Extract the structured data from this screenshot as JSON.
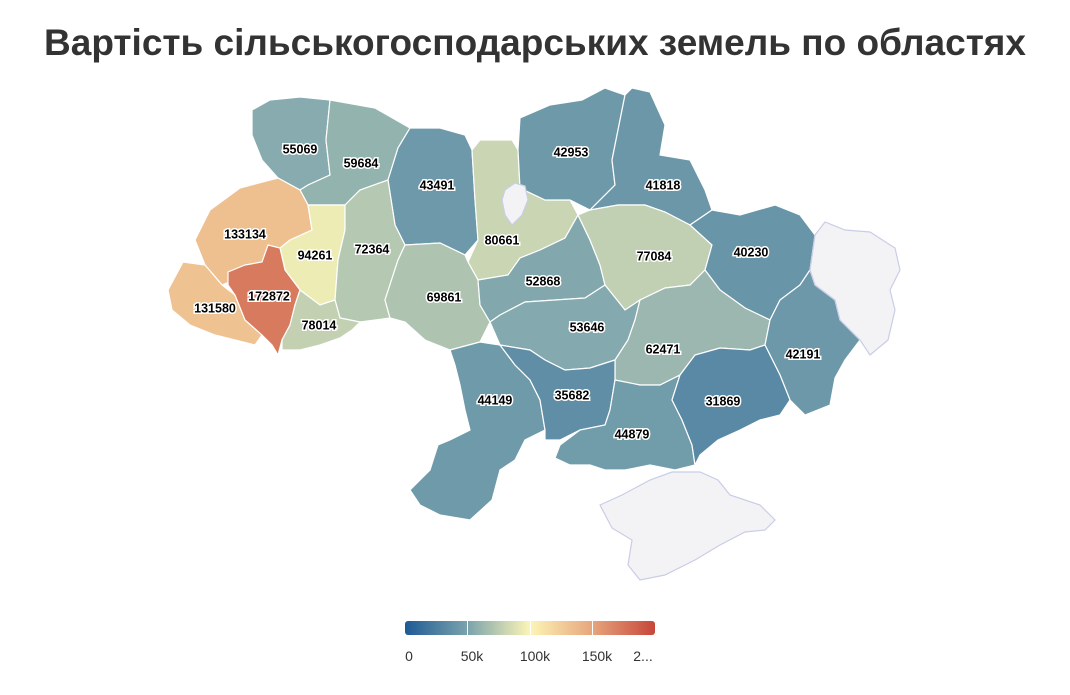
{
  "title": "Вартість сільськогосподарських земель по областях",
  "legend": {
    "labels": [
      "0",
      "50k",
      "100k",
      "150k",
      "2..."
    ],
    "color_stops": [
      "#1f5a94",
      "#7aa3ad",
      "#fdf5b6",
      "#e7a57c",
      "#c6463a"
    ],
    "min": 0,
    "max": 200000
  },
  "colors": {
    "no_data": "#f3f3f6"
  },
  "regions": [
    {
      "id": "volyn",
      "value": 55069
    },
    {
      "id": "rivne",
      "value": 59684
    },
    {
      "id": "zhytomyr",
      "value": 43491
    },
    {
      "id": "kyiv",
      "value": 80661
    },
    {
      "id": "chernihiv",
      "value": 42953
    },
    {
      "id": "sumy",
      "value": 41818
    },
    {
      "id": "lviv",
      "value": 133134
    },
    {
      "id": "ternopil",
      "value": 94261
    },
    {
      "id": "khmelnytskyi",
      "value": 72364
    },
    {
      "id": "vinnytsia",
      "value": 69861
    },
    {
      "id": "cherkasy",
      "value": 52868
    },
    {
      "id": "poltava",
      "value": 77084
    },
    {
      "id": "kharkiv",
      "value": 40230
    },
    {
      "id": "zakarpattia",
      "value": 131580
    },
    {
      "id": "ivano-frankivsk",
      "value": 172872
    },
    {
      "id": "chernivtsi",
      "value": 78014
    },
    {
      "id": "kirovohrad",
      "value": 53646
    },
    {
      "id": "dnipropetrovsk",
      "value": 62471
    },
    {
      "id": "luhansk",
      "value": 42191
    },
    {
      "id": "odesa",
      "value": 44149
    },
    {
      "id": "mykolaiv",
      "value": 35682
    },
    {
      "id": "kherson",
      "value": 44879
    },
    {
      "id": "zaporizhzhia",
      "value": 31869
    },
    {
      "id": "donetsk-east",
      "value": null
    },
    {
      "id": "crimea",
      "value": null
    },
    {
      "id": "kyiv-city",
      "value": null
    }
  ]
}
